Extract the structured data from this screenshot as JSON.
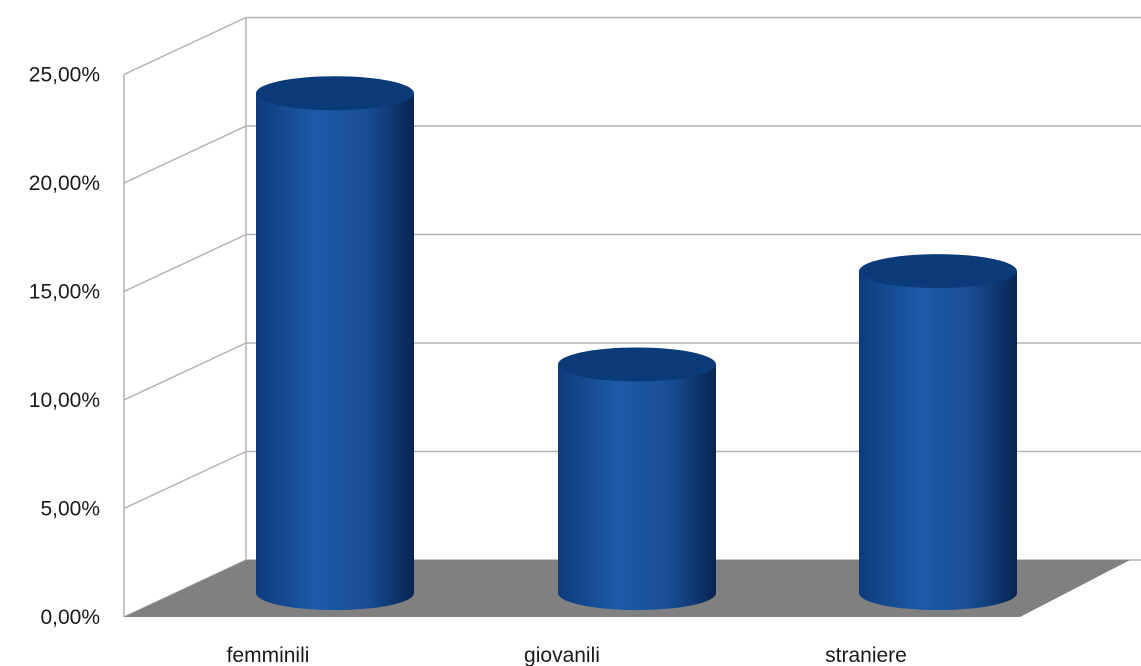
{
  "chart_data": {
    "type": "bar",
    "style": "3d-cylinder",
    "categories": [
      "femminili",
      "giovanili",
      "straniere"
    ],
    "values": [
      22.3,
      9.8,
      14.1
    ],
    "ylim": [
      0,
      25
    ],
    "ytick_values": [
      0,
      5,
      10,
      15,
      20,
      25
    ],
    "ytick_labels": [
      "0,00%",
      "5,00%",
      "10,00%",
      "15,00%",
      "20,00%",
      "25,00%"
    ],
    "grid": true,
    "legend": "none",
    "colors": {
      "bar": "#1a56a3",
      "bar_dark": "#0a2f66",
      "bar_light": "#2f6fc0",
      "bar_top": "#0b3a78",
      "floor": "#808080",
      "gridline": "#b3b3b3"
    }
  }
}
